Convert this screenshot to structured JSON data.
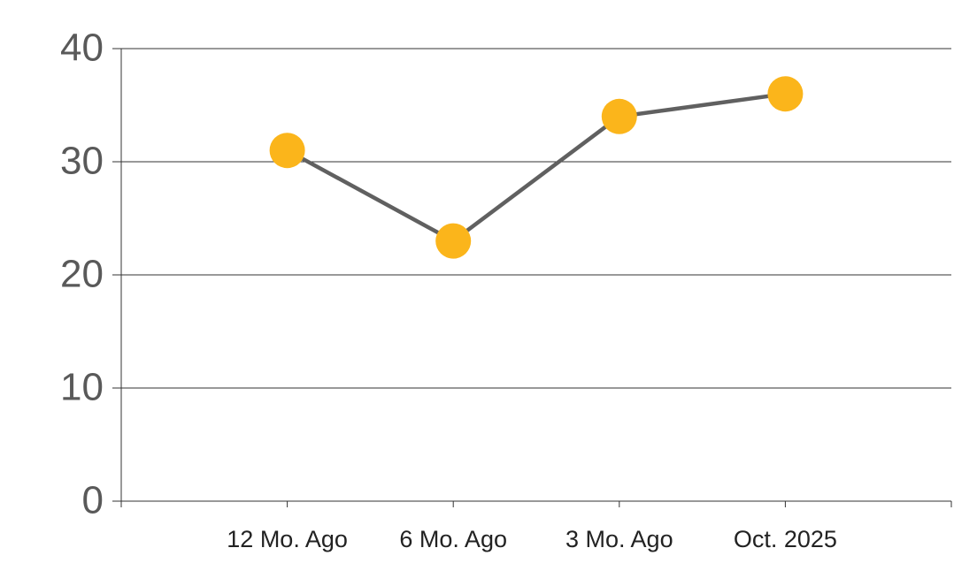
{
  "chart_data": {
    "type": "line",
    "categories": [
      "12 Mo. Ago",
      "6 Mo. Ago",
      "3 Mo. Ago",
      "Oct. 2025"
    ],
    "series": [
      {
        "values": [
          31,
          23,
          34,
          36
        ],
        "color": "#606060",
        "marker_color": "#fbb51b"
      }
    ],
    "ylim": [
      0,
      40
    ],
    "yticks": [
      0,
      10,
      20,
      30,
      40
    ],
    "grid": true
  }
}
